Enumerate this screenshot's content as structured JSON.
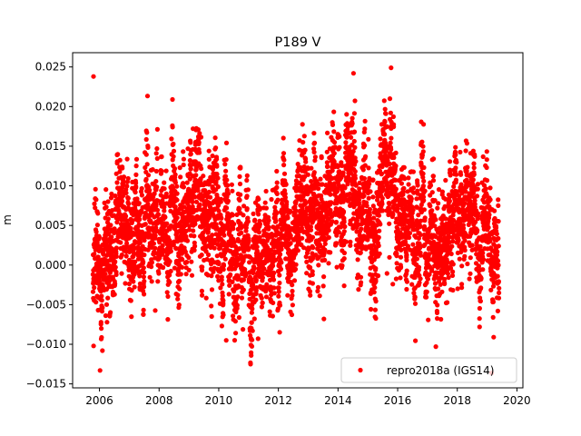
{
  "chart_data": {
    "type": "scatter",
    "title": "P189 V",
    "xlabel": "",
    "ylabel": "m",
    "xlim": [
      2005.1,
      2020.2
    ],
    "ylim": [
      -0.0155,
      0.0268
    ],
    "x_ticks": [
      "2006",
      "2008",
      "2010",
      "2012",
      "2014",
      "2016",
      "2018",
      "2020"
    ],
    "y_ticks": [
      "−0.015",
      "−0.010",
      "−0.005",
      "0.000",
      "0.005",
      "0.010",
      "0.015",
      "0.020",
      "0.025"
    ],
    "grid": false,
    "legend_position": "lower-right",
    "series": [
      {
        "name": "repro2018a (IGS14)",
        "color": "#ff0000",
        "marker": "circle",
        "x_range": [
          2005.78,
          2019.4
        ],
        "trend": [
          {
            "x": 2005.8,
            "y": 0.001
          },
          {
            "x": 2006.5,
            "y": 0.003
          },
          {
            "x": 2007.0,
            "y": 0.005
          },
          {
            "x": 2008.0,
            "y": 0.006
          },
          {
            "x": 2009.0,
            "y": 0.0065
          },
          {
            "x": 2010.0,
            "y": 0.0045
          },
          {
            "x": 2011.0,
            "y": 0.002
          },
          {
            "x": 2011.5,
            "y": 0.0015
          },
          {
            "x": 2012.0,
            "y": 0.006
          },
          {
            "x": 2013.0,
            "y": 0.006
          },
          {
            "x": 2014.0,
            "y": 0.009
          },
          {
            "x": 2014.7,
            "y": 0.011
          },
          {
            "x": 2015.2,
            "y": 0.005
          },
          {
            "x": 2015.8,
            "y": 0.011
          },
          {
            "x": 2016.5,
            "y": 0.004
          },
          {
            "x": 2017.3,
            "y": 0.001
          },
          {
            "x": 2018.0,
            "y": 0.007
          },
          {
            "x": 2018.8,
            "y": 0.005
          },
          {
            "x": 2019.4,
            "y": 0.002
          }
        ],
        "spread": 0.0042,
        "outliers": [
          {
            "x": 2005.8,
            "y": 0.0238
          },
          {
            "x": 2006.02,
            "y": -0.0133
          },
          {
            "x": 2006.1,
            "y": -0.0108
          },
          {
            "x": 2008.45,
            "y": 0.0209
          },
          {
            "x": 2010.25,
            "y": -0.0095
          },
          {
            "x": 2011.32,
            "y": -0.0093
          },
          {
            "x": 2014.52,
            "y": 0.0242
          },
          {
            "x": 2015.78,
            "y": 0.0249
          },
          {
            "x": 2017.28,
            "y": -0.0103
          },
          {
            "x": 2019.22,
            "y": -0.0091
          }
        ]
      }
    ]
  }
}
